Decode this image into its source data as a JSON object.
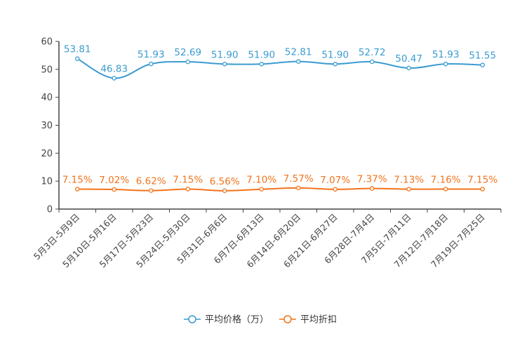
{
  "chart_data": {
    "type": "line",
    "title": "",
    "xlabel": "",
    "ylabel": "",
    "ylim": [
      0,
      60
    ],
    "yticks": [
      0,
      10,
      20,
      30,
      40,
      50,
      60
    ],
    "grid": false,
    "legend_position": "bottom-center",
    "categories": [
      "5月3日-5月9日",
      "5月10日-5月16日",
      "5月17日-5月23日",
      "5月24日-5月30日",
      "5月31日-6月6日",
      "6月7日-6月13日",
      "6月14日-6月20日",
      "6月21日-6月27日",
      "6月28日-7月4日",
      "7月5日-7月11日",
      "7月12日-7月18日",
      "7月19日-7月25日"
    ],
    "series": [
      {
        "name": "平均价格（万）",
        "color": "#3a9bd1",
        "values": [
          53.81,
          46.83,
          51.93,
          52.69,
          51.9,
          51.9,
          52.81,
          51.9,
          52.72,
          50.47,
          51.93,
          51.55
        ],
        "labels": [
          "53.81",
          "46.83",
          "51.93",
          "52.69",
          "51.90",
          "51.90",
          "52.81",
          "51.90",
          "52.72",
          "50.47",
          "51.93",
          "51.55"
        ]
      },
      {
        "name": "平均折扣",
        "color": "#f2731b",
        "values": [
          7.15,
          7.02,
          6.62,
          7.15,
          6.56,
          7.1,
          7.57,
          7.07,
          7.37,
          7.13,
          7.16,
          7.15
        ],
        "labels": [
          "7.15%",
          "7.02%",
          "6.62%",
          "7.15%",
          "6.56%",
          "7.10%",
          "7.57%",
          "7.07%",
          "7.37%",
          "7.13%",
          "7.16%",
          "7.15%"
        ]
      }
    ]
  },
  "colors": {
    "axis": "#444444"
  }
}
